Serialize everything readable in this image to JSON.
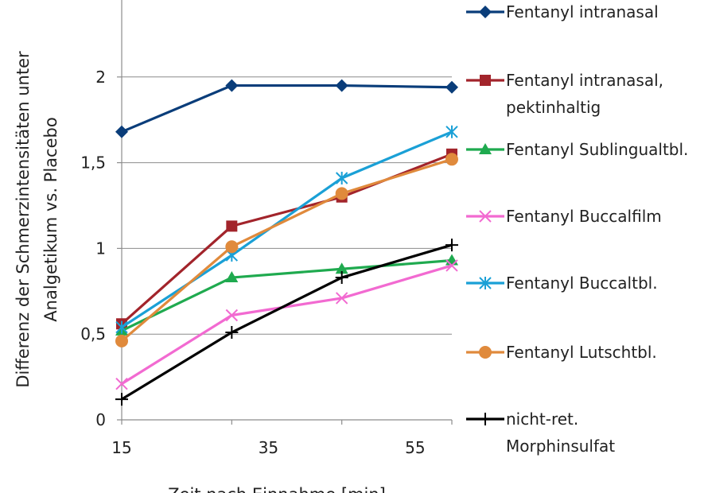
{
  "chart_data": {
    "type": "line",
    "xlabel": "Zeit nach Einnahme [min]",
    "ylabel": [
      "Differenz der Schmerzintensitäten unter",
      "Analgetikum vs. Placebo"
    ],
    "x": [
      15,
      30,
      45,
      60
    ],
    "x_ticks": [
      15,
      35,
      55
    ],
    "x_tick_labels": [
      "15",
      "35",
      "55"
    ],
    "xlim": [
      15,
      60
    ],
    "y_ticks": [
      0,
      0.5,
      1,
      1.5,
      2
    ],
    "y_tick_labels": [
      "0",
      "0,5",
      "1",
      "1,5",
      "2"
    ],
    "ylim": [
      0,
      2.5
    ],
    "grid": "horizontal",
    "legend_position": "right",
    "series": [
      {
        "name": [
          "Fentanyl intranasal"
        ],
        "values": [
          1.68,
          1.95,
          1.95,
          1.94
        ],
        "color": "#0a3d7a",
        "marker": "diamond"
      },
      {
        "name": [
          "Fentanyl intranasal,",
          "pektinhaltig"
        ],
        "values": [
          0.56,
          1.13,
          1.3,
          1.55
        ],
        "color": "#a2242b",
        "marker": "square"
      },
      {
        "name": [
          "Fentanyl Sublingualtbl."
        ],
        "values": [
          0.52,
          0.83,
          0.88,
          0.93
        ],
        "color": "#1faa4f",
        "marker": "triangle"
      },
      {
        "name": [
          "Fentanyl Buccalfilm"
        ],
        "values": [
          0.21,
          0.61,
          0.71,
          0.9
        ],
        "color": "#f26ad1",
        "marker": "x"
      },
      {
        "name": [
          "Fentanyl Buccaltbl."
        ],
        "values": [
          0.54,
          0.96,
          1.41,
          1.68
        ],
        "color": "#1aa0d6",
        "marker": "asterisk"
      },
      {
        "name": [
          "Fentanyl Lutschtbl."
        ],
        "values": [
          0.46,
          1.01,
          1.32,
          1.52
        ],
        "color": "#e08a3c",
        "marker": "circle"
      },
      {
        "name": [
          "nicht-ret.",
          "Morphinsulfat"
        ],
        "values": [
          0.12,
          0.51,
          0.83,
          1.02
        ],
        "color": "#000000",
        "marker": "plus"
      }
    ]
  }
}
